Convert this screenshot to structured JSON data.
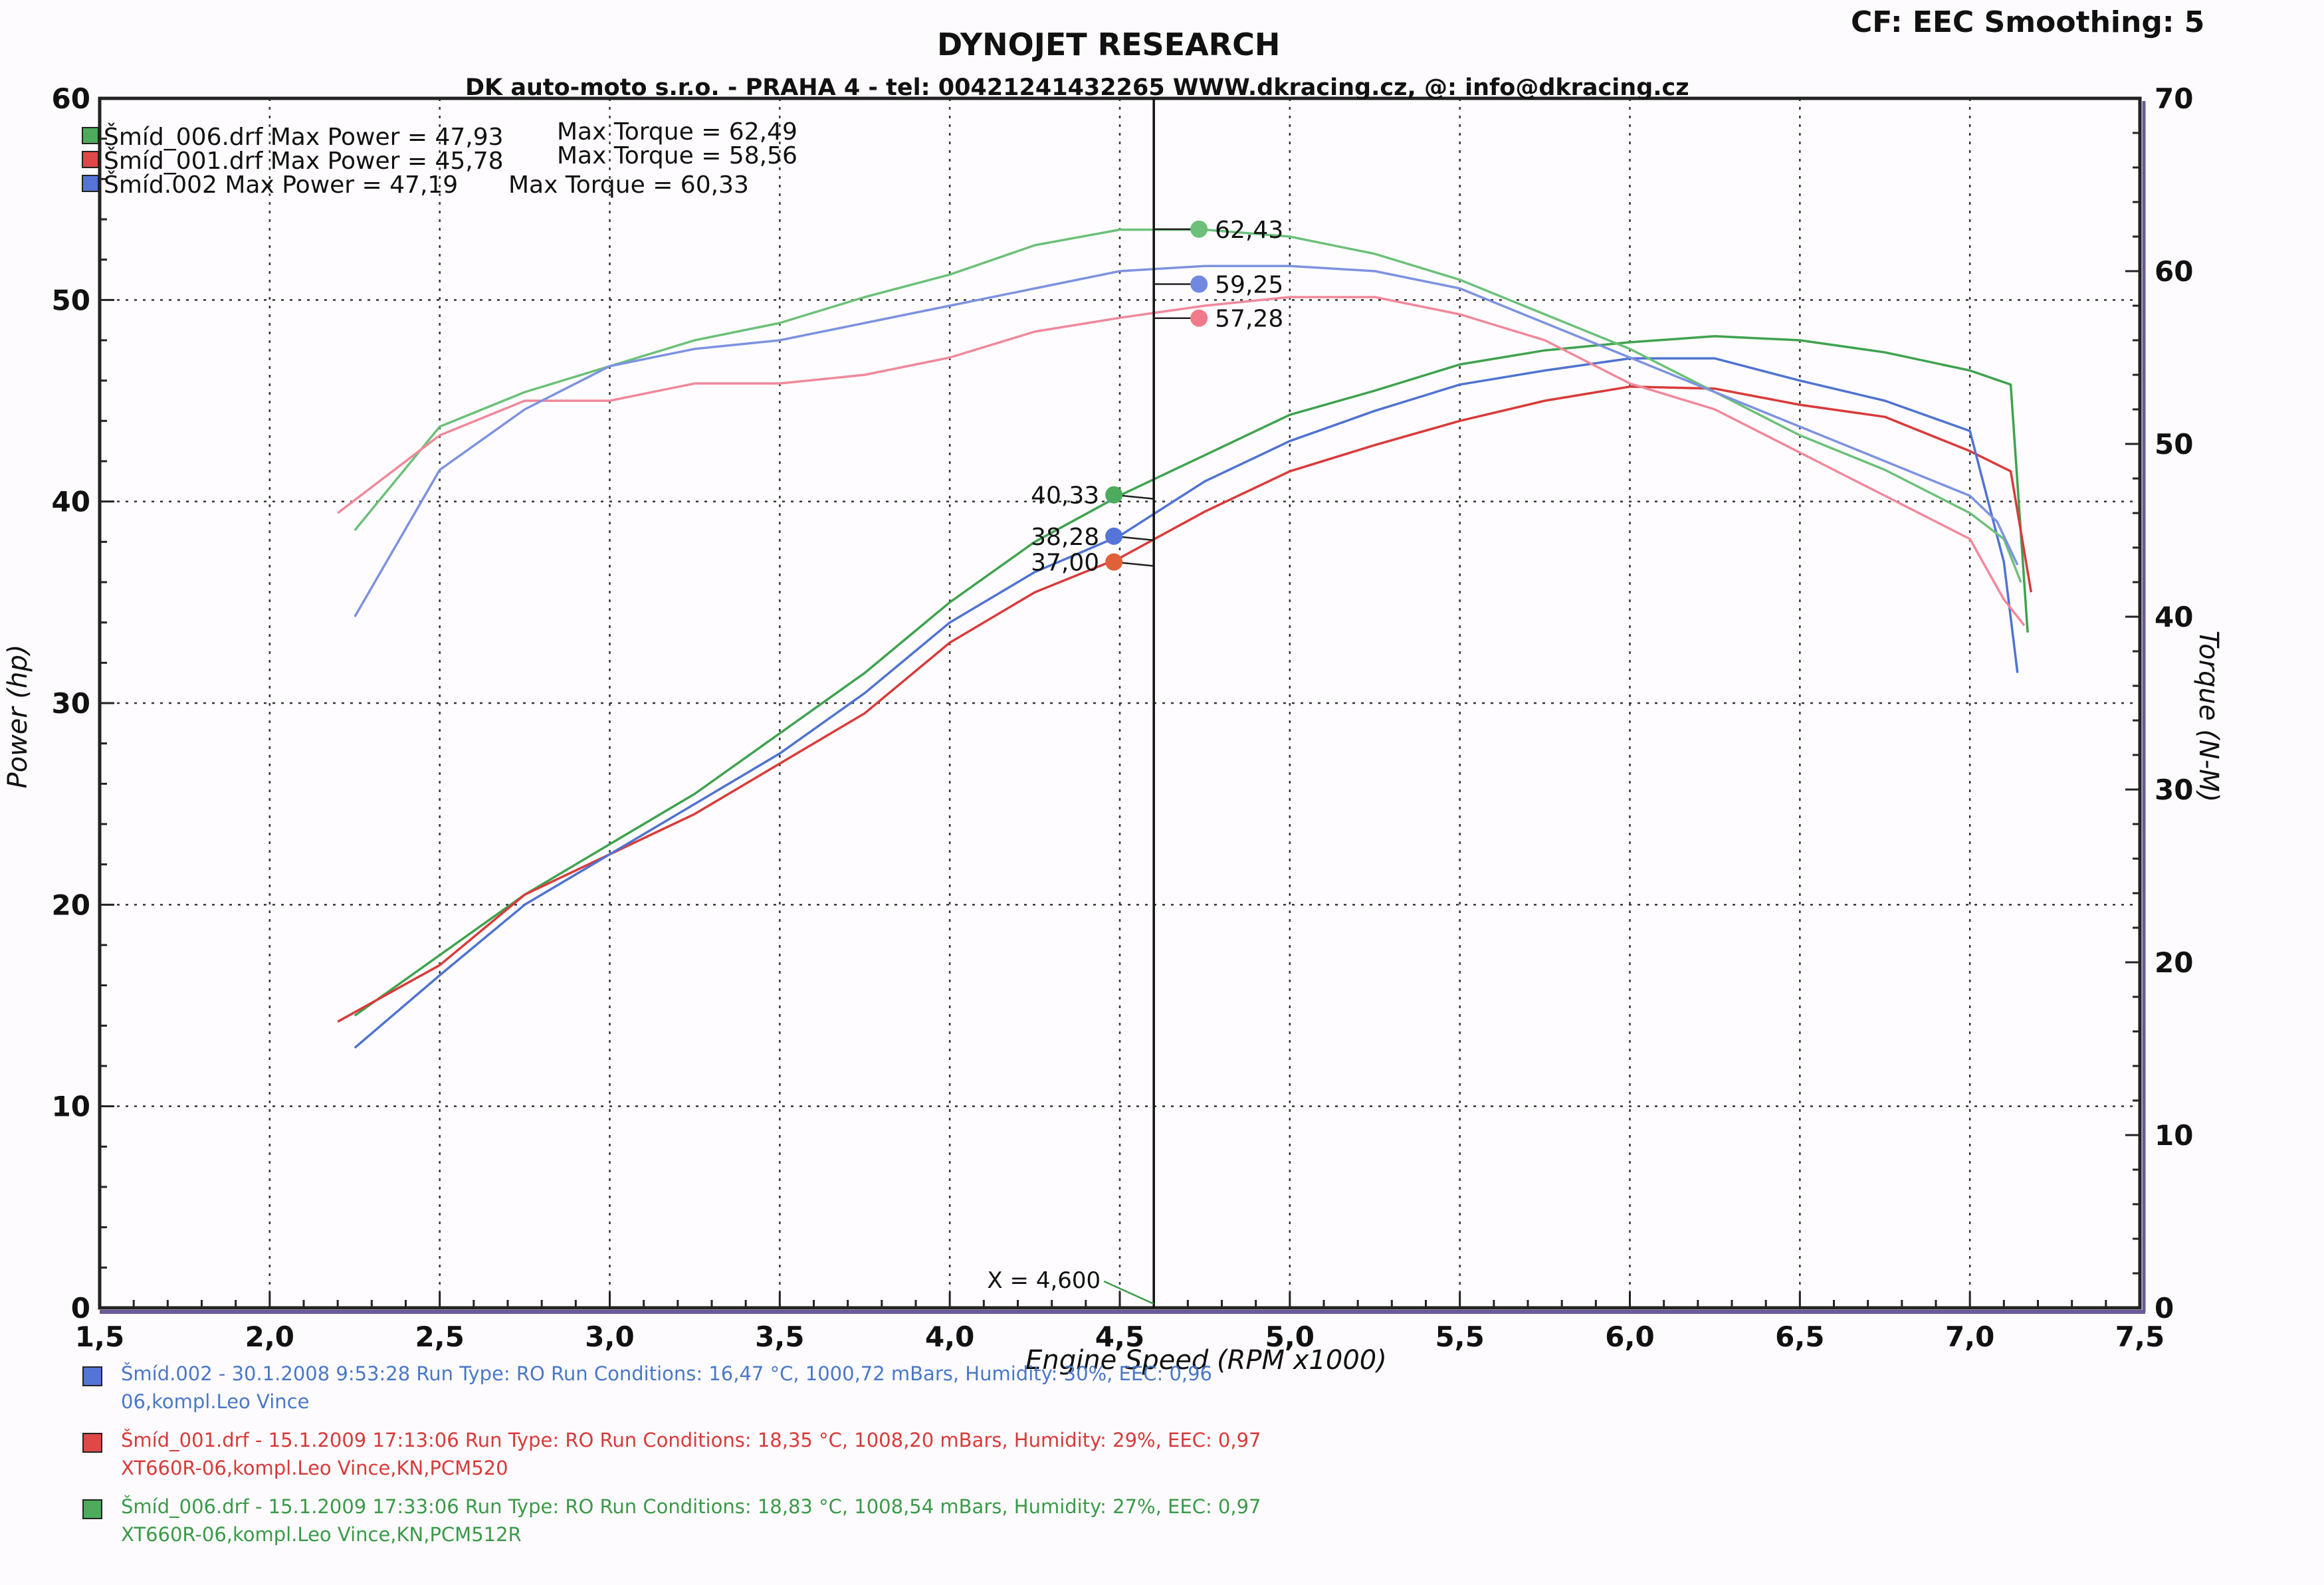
{
  "header": {
    "title": "DYNOJET RESEARCH",
    "subtitle": "DK auto-moto s.r.o. - PRAHA 4 - tel: 00421241432265    WWW.dkracing.cz,    @: info@dkracing.cz",
    "cf": "CF: EEC  Smoothing: 5"
  },
  "legend": [
    {
      "label": "Šmíd_006.drf Max Power = 47,93",
      "torque": "Max Torque = 62,49",
      "color": "#4cab5c"
    },
    {
      "label": "Šmíd_001.drf Max Power = 45,78",
      "torque": "Max Torque = 58,56",
      "color": "#e04848"
    },
    {
      "label": "Šmíd.002 Max Power = 47,19",
      "torque": "Max Torque = 60,33",
      "color": "#5574d8"
    }
  ],
  "cursor": {
    "label": "X = 4,600",
    "x": 4.6
  },
  "markers": {
    "torque": [
      {
        "value": "62,43",
        "v": 62.43,
        "color": "#6cc07a"
      },
      {
        "value": "59,25",
        "v": 59.25,
        "color": "#7088e0"
      },
      {
        "value": "57,28",
        "v": 57.28,
        "color": "#f07a8a"
      }
    ],
    "power": [
      {
        "value": "40,33",
        "v": 40.33,
        "color": "#4cab5c"
      },
      {
        "value": "38,28",
        "v": 38.28,
        "color": "#5574d8"
      },
      {
        "value": "37,00",
        "v": 37.0,
        "color": "#e0603a"
      }
    ]
  },
  "runs": [
    {
      "line1": "Šmíd.002 - 30.1.2008 9:53:28  Run Type: RO  Run Conditions: 16,47 °C, 1000,72 mBars,  Humidity:  30%, EEC: 0,96",
      "line2": "06,kompl.Leo Vince",
      "color": "#4a78c8",
      "swatch": "#5574d8"
    },
    {
      "line1": "Šmíd_001.drf - 15.1.2009 17:13:06  Run Type: RO  Run Conditions: 18,35 °C, 1008,20 mBars,  Humidity:  29%, EEC: 0,97",
      "line2": "XT660R-06,kompl.Leo Vince,KN,PCM520",
      "color": "#d83a3a",
      "swatch": "#e04848"
    },
    {
      "line1": "Šmíd_006.drf - 15.1.2009 17:33:06  Run Type: RO  Run Conditions: 18,83 °C, 1008,54 mBars,  Humidity:  27%, EEC: 0,97",
      "line2": "XT660R-06,kompl.Leo Vince,KN,PCM512R",
      "color": "#3a9a48",
      "swatch": "#4cab5c"
    }
  ],
  "chart_data": {
    "type": "line",
    "xlabel": "Engine Speed (RPM x1000)",
    "ylabel": "Power (hp)",
    "y2label": "Torque (N-M)",
    "xlim": [
      1.5,
      7.5
    ],
    "ylim": [
      0,
      60
    ],
    "y2lim": [
      0,
      70
    ],
    "xticks": [
      "1,5",
      "2,0",
      "2,5",
      "3,0",
      "3,5",
      "4,0",
      "4,5",
      "5,0",
      "5,5",
      "6,0",
      "6,5",
      "7,0",
      "7,5"
    ],
    "yticks": [
      "0",
      "10",
      "20",
      "30",
      "40",
      "50",
      "60"
    ],
    "y2ticks": [
      "0",
      "10",
      "20",
      "30",
      "40",
      "50",
      "60",
      "70"
    ],
    "grid": true,
    "legend_position": "top-left",
    "series": [
      {
        "name": "Šmíd_006.drf",
        "quantity": "power",
        "color": "#3fa24f",
        "x": [
          2.25,
          2.5,
          2.75,
          3.0,
          3.25,
          3.5,
          3.75,
          4.0,
          4.25,
          4.5,
          4.75,
          5.0,
          5.25,
          5.5,
          5.75,
          6.0,
          6.25,
          6.5,
          6.75,
          7.0,
          7.12,
          7.17
        ],
        "y": [
          14.5,
          17.5,
          20.5,
          23.0,
          25.5,
          28.5,
          31.5,
          35.0,
          38.0,
          40.3,
          42.3,
          44.3,
          45.5,
          46.8,
          47.5,
          47.9,
          48.2,
          48.0,
          47.4,
          46.5,
          45.8,
          33.5
        ]
      },
      {
        "name": "Šmíd_001.drf",
        "quantity": "power",
        "color": "#d93a3a",
        "x": [
          2.2,
          2.5,
          2.75,
          3.0,
          3.25,
          3.5,
          3.75,
          4.0,
          4.25,
          4.5,
          4.75,
          5.0,
          5.25,
          5.5,
          5.75,
          6.0,
          6.25,
          6.5,
          6.75,
          7.0,
          7.12,
          7.18
        ],
        "y": [
          14.2,
          17.0,
          20.5,
          22.5,
          24.5,
          27.0,
          29.5,
          33.0,
          35.5,
          37.2,
          39.5,
          41.5,
          42.8,
          44.0,
          45.0,
          45.7,
          45.6,
          44.8,
          44.2,
          42.5,
          41.5,
          35.5
        ]
      },
      {
        "name": "Šmíd.002",
        "quantity": "power",
        "color": "#4f73d0",
        "x": [
          2.25,
          2.5,
          2.75,
          3.0,
          3.25,
          3.5,
          3.75,
          4.0,
          4.25,
          4.5,
          4.75,
          5.0,
          5.25,
          5.5,
          5.75,
          6.0,
          6.25,
          6.5,
          6.75,
          7.0,
          7.1,
          7.14
        ],
        "y": [
          12.9,
          16.5,
          20.0,
          22.5,
          25.0,
          27.5,
          30.5,
          34.0,
          36.5,
          38.3,
          41.0,
          43.0,
          44.5,
          45.8,
          46.5,
          47.1,
          47.1,
          46.0,
          45.0,
          43.5,
          37.0,
          31.5
        ]
      },
      {
        "name": "Šmíd_006.drf",
        "quantity": "torque",
        "color": "#6cc07a",
        "x": [
          2.25,
          2.5,
          2.75,
          3.0,
          3.25,
          3.5,
          3.75,
          4.0,
          4.25,
          4.5,
          4.75,
          5.0,
          5.25,
          5.5,
          5.75,
          6.0,
          6.25,
          6.5,
          6.75,
          7.0,
          7.1,
          7.15
        ],
        "y": [
          45.0,
          51.0,
          53.0,
          54.5,
          56.0,
          57.0,
          58.5,
          59.8,
          61.5,
          62.4,
          62.4,
          62.0,
          61.0,
          59.5,
          57.5,
          55.5,
          53.0,
          50.5,
          48.5,
          46.0,
          44.5,
          42.0
        ]
      },
      {
        "name": "Šmíd_001.drf",
        "quantity": "torque",
        "color": "#f0889a",
        "x": [
          2.2,
          2.5,
          2.75,
          3.0,
          3.25,
          3.5,
          3.75,
          4.0,
          4.25,
          4.5,
          4.75,
          5.0,
          5.25,
          5.5,
          5.75,
          6.0,
          6.25,
          6.5,
          6.75,
          7.0,
          7.1,
          7.16
        ],
        "y": [
          46.0,
          50.5,
          52.5,
          52.5,
          53.5,
          53.5,
          54.0,
          55.0,
          56.5,
          57.3,
          58.0,
          58.5,
          58.5,
          57.5,
          56.0,
          53.5,
          52.0,
          49.5,
          47.0,
          44.5,
          41.0,
          39.5
        ]
      },
      {
        "name": "Šmíd.002",
        "quantity": "torque",
        "color": "#7d92e0",
        "x": [
          2.25,
          2.5,
          2.75,
          3.0,
          3.25,
          3.5,
          3.75,
          4.0,
          4.25,
          4.5,
          4.75,
          5.0,
          5.25,
          5.5,
          5.75,
          6.0,
          6.25,
          6.5,
          6.75,
          7.0,
          7.08,
          7.14
        ],
        "y": [
          40.0,
          48.5,
          52.0,
          54.5,
          55.5,
          56.0,
          57.0,
          58.0,
          59.0,
          60.0,
          60.3,
          60.3,
          60.0,
          59.0,
          57.0,
          55.0,
          53.0,
          51.0,
          49.0,
          47.0,
          45.5,
          43.0
        ]
      }
    ]
  }
}
